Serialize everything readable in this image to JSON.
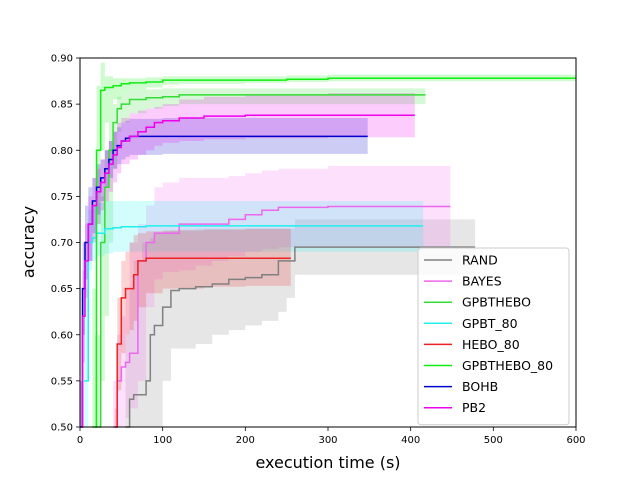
{
  "chart_data": {
    "type": "line",
    "title": "",
    "xlabel": "execution time (s)",
    "ylabel": "accuracy",
    "xlim": [
      0,
      600
    ],
    "ylim": [
      0.5,
      0.9
    ],
    "xticks": [
      "0",
      "100",
      "200",
      "300",
      "400",
      "500",
      "600"
    ],
    "yticks": [
      "0.50",
      "0.55",
      "0.60",
      "0.65",
      "0.70",
      "0.75",
      "0.80",
      "0.85",
      "0.90"
    ],
    "grid": false,
    "legend_position": "lower-right",
    "series": [
      {
        "name": "RAND",
        "color": "#808080",
        "x": [
          55,
          60,
          65,
          75,
          80,
          85,
          90,
          100,
          110,
          120,
          140,
          160,
          180,
          200,
          220,
          240,
          250,
          260,
          300,
          400,
          478
        ],
        "y": [
          0.5,
          0.53,
          0.535,
          0.535,
          0.55,
          0.6,
          0.61,
          0.63,
          0.648,
          0.65,
          0.652,
          0.655,
          0.66,
          0.662,
          0.665,
          0.68,
          0.68,
          0.695,
          0.695,
          0.695,
          0.695
        ],
        "upper": [
          0.6,
          0.65,
          0.68,
          0.7,
          0.7,
          0.705,
          0.71,
          0.712,
          0.713,
          0.714,
          0.715,
          0.715,
          0.715,
          0.715,
          0.715,
          0.715,
          0.715,
          0.725,
          0.725,
          0.725,
          0.725
        ],
        "lower": [
          0.5,
          0.5,
          0.5,
          0.5,
          0.5,
          0.5,
          0.5,
          0.55,
          0.585,
          0.585,
          0.59,
          0.6,
          0.605,
          0.61,
          0.615,
          0.625,
          0.64,
          0.665,
          0.665,
          0.665,
          0.665
        ]
      },
      {
        "name": "BAYES",
        "color": "#ee66ee",
        "x": [
          40,
          45,
          50,
          55,
          60,
          70,
          80,
          90,
          100,
          120,
          140,
          160,
          180,
          200,
          220,
          240,
          300,
          400,
          448
        ],
        "y": [
          0.5,
          0.55,
          0.565,
          0.57,
          0.58,
          0.68,
          0.7,
          0.71,
          0.71,
          0.72,
          0.72,
          0.72,
          0.725,
          0.73,
          0.735,
          0.738,
          0.739,
          0.739,
          0.739
        ],
        "upper": [
          0.55,
          0.6,
          0.62,
          0.65,
          0.7,
          0.72,
          0.74,
          0.76,
          0.765,
          0.77,
          0.77,
          0.77,
          0.772,
          0.775,
          0.778,
          0.78,
          0.783,
          0.783,
          0.783
        ],
        "lower": [
          0.5,
          0.5,
          0.5,
          0.51,
          0.52,
          0.55,
          0.63,
          0.66,
          0.668,
          0.67,
          0.675,
          0.68,
          0.685,
          0.69,
          0.693,
          0.695,
          0.695,
          0.695,
          0.695
        ]
      },
      {
        "name": "GPBTHEBO",
        "color": "#33dd33",
        "x": [
          18,
          25,
          30,
          35,
          40,
          45,
          50,
          60,
          80,
          100,
          120,
          150,
          200,
          250,
          300,
          350,
          418
        ],
        "y": [
          0.5,
          0.7,
          0.76,
          0.8,
          0.83,
          0.845,
          0.85,
          0.855,
          0.857,
          0.858,
          0.86,
          0.86,
          0.86,
          0.86,
          0.86,
          0.86,
          0.86
        ],
        "upper": [
          0.6,
          0.75,
          0.8,
          0.83,
          0.85,
          0.858,
          0.862,
          0.865,
          0.866,
          0.867,
          0.867,
          0.867,
          0.867,
          0.867,
          0.867,
          0.867,
          0.867
        ],
        "lower": [
          0.5,
          0.55,
          0.62,
          0.7,
          0.78,
          0.82,
          0.83,
          0.84,
          0.845,
          0.848,
          0.85,
          0.85,
          0.85,
          0.85,
          0.85,
          0.85,
          0.85
        ]
      },
      {
        "name": "GPBT_80",
        "color": "#22eeee",
        "x": [
          5,
          10,
          15,
          20,
          30,
          40,
          50,
          60,
          80,
          100,
          150,
          200,
          300,
          415
        ],
        "y": [
          0.55,
          0.7,
          0.705,
          0.71,
          0.715,
          0.716,
          0.717,
          0.717,
          0.718,
          0.718,
          0.718,
          0.718,
          0.718,
          0.718
        ],
        "upper": [
          0.65,
          0.735,
          0.74,
          0.743,
          0.745,
          0.745,
          0.745,
          0.745,
          0.745,
          0.745,
          0.745,
          0.745,
          0.745,
          0.745
        ],
        "lower": [
          0.5,
          0.67,
          0.68,
          0.685,
          0.688,
          0.69,
          0.69,
          0.69,
          0.69,
          0.69,
          0.69,
          0.69,
          0.69,
          0.69
        ]
      },
      {
        "name": "HEBO_80",
        "color": "#ee2222",
        "x": [
          42,
          45,
          50,
          55,
          60,
          65,
          70,
          80,
          100,
          150,
          200,
          255
        ],
        "y": [
          0.5,
          0.59,
          0.64,
          0.65,
          0.65,
          0.665,
          0.68,
          0.683,
          0.683,
          0.683,
          0.683,
          0.683
        ],
        "upper": [
          0.52,
          0.64,
          0.68,
          0.69,
          0.7,
          0.708,
          0.71,
          0.712,
          0.713,
          0.714,
          0.715,
          0.715
        ],
        "lower": [
          0.5,
          0.54,
          0.58,
          0.6,
          0.605,
          0.615,
          0.63,
          0.645,
          0.65,
          0.652,
          0.653,
          0.653
        ]
      },
      {
        "name": "GPBTHEBO_80",
        "color": "#11ee11",
        "x": [
          15,
          20,
          25,
          30,
          40,
          50,
          60,
          80,
          100,
          120,
          150,
          200,
          250,
          300,
          400,
          600
        ],
        "y": [
          0.5,
          0.8,
          0.865,
          0.868,
          0.87,
          0.872,
          0.873,
          0.874,
          0.876,
          0.876,
          0.876,
          0.876,
          0.877,
          0.878,
          0.878,
          0.878
        ],
        "upper": [
          0.65,
          0.87,
          0.895,
          0.88,
          0.878,
          0.878,
          0.878,
          0.879,
          0.88,
          0.88,
          0.88,
          0.88,
          0.881,
          0.882,
          0.882,
          0.882
        ],
        "lower": [
          0.5,
          0.72,
          0.8,
          0.83,
          0.855,
          0.862,
          0.865,
          0.868,
          0.871,
          0.872,
          0.872,
          0.873,
          0.874,
          0.875,
          0.875,
          0.875
        ]
      },
      {
        "name": "BOHB",
        "color": "#0000cc",
        "x": [
          0,
          3,
          6,
          10,
          15,
          20,
          25,
          30,
          35,
          40,
          45,
          50,
          55,
          60,
          100,
          200,
          348
        ],
        "y": [
          0.5,
          0.65,
          0.7,
          0.72,
          0.745,
          0.76,
          0.77,
          0.78,
          0.79,
          0.8,
          0.805,
          0.81,
          0.813,
          0.815,
          0.815,
          0.815,
          0.815
        ],
        "upper": [
          0.55,
          0.7,
          0.74,
          0.76,
          0.77,
          0.785,
          0.79,
          0.8,
          0.81,
          0.82,
          0.825,
          0.83,
          0.832,
          0.834,
          0.835,
          0.835,
          0.835
        ],
        "lower": [
          0.5,
          0.6,
          0.66,
          0.68,
          0.71,
          0.73,
          0.745,
          0.76,
          0.77,
          0.78,
          0.785,
          0.79,
          0.793,
          0.795,
          0.796,
          0.796,
          0.796
        ]
      },
      {
        "name": "PB2",
        "color": "#ee00ee",
        "x": [
          0,
          3,
          6,
          10,
          15,
          20,
          25,
          30,
          35,
          40,
          45,
          50,
          60,
          70,
          80,
          90,
          100,
          120,
          150,
          200,
          300,
          405
        ],
        "y": [
          0.5,
          0.62,
          0.68,
          0.72,
          0.74,
          0.755,
          0.765,
          0.775,
          0.785,
          0.795,
          0.803,
          0.81,
          0.815,
          0.82,
          0.825,
          0.83,
          0.832,
          0.835,
          0.837,
          0.838,
          0.838,
          0.838
        ],
        "upper": [
          0.55,
          0.67,
          0.72,
          0.75,
          0.77,
          0.78,
          0.79,
          0.8,
          0.81,
          0.82,
          0.83,
          0.835,
          0.84,
          0.843,
          0.845,
          0.847,
          0.85,
          0.855,
          0.858,
          0.86,
          0.862,
          0.862
        ],
        "lower": [
          0.5,
          0.57,
          0.64,
          0.68,
          0.7,
          0.72,
          0.735,
          0.745,
          0.755,
          0.765,
          0.775,
          0.785,
          0.79,
          0.795,
          0.8,
          0.805,
          0.808,
          0.81,
          0.812,
          0.813,
          0.814,
          0.814
        ]
      }
    ]
  }
}
